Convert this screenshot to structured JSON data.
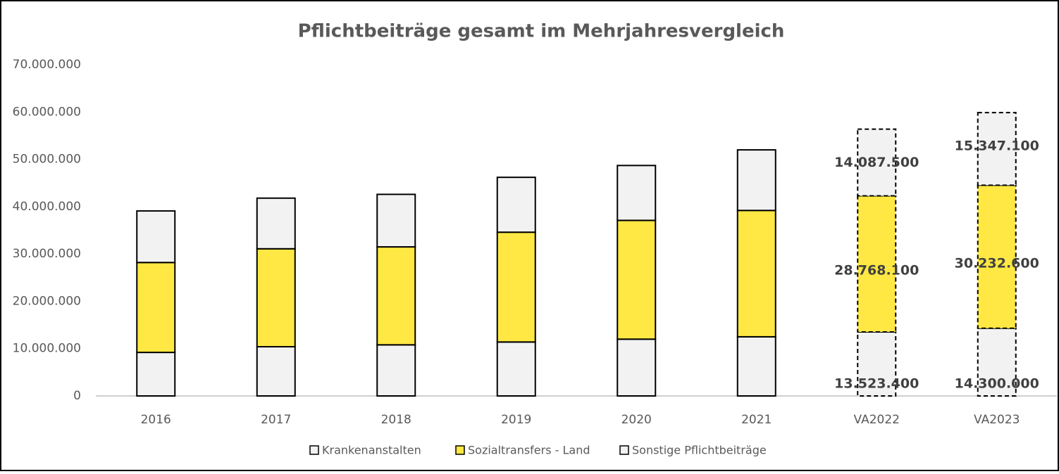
{
  "chart_data": {
    "type": "stacked_bar",
    "title": "Pflichtbeiträge gesamt  im Mehrjahresvergleich",
    "categories": [
      "2016",
      "2017",
      "2018",
      "2019",
      "2020",
      "2021",
      "VA2022",
      "VA2023"
    ],
    "series": [
      {
        "name": "Krankenanstalten",
        "color": "#f2f2f2",
        "values": [
          9200000,
          10400000,
          10800000,
          11400000,
          12000000,
          12500000,
          13523400,
          14300000
        ],
        "value_labels": [
          null,
          null,
          null,
          null,
          null,
          null,
          "13.523.400",
          "14.300.000"
        ]
      },
      {
        "name": "Sozialtransfers - Land",
        "color": "#ffe843",
        "values": [
          19000000,
          20700000,
          20700000,
          23200000,
          25100000,
          26700000,
          28768100,
          30232600
        ],
        "value_labels": [
          null,
          null,
          null,
          null,
          null,
          null,
          "28.768.100",
          "30.232.600"
        ]
      },
      {
        "name": "Sonstige Pflichtbeiträge",
        "color": "#f2f2f2",
        "values": [
          10900000,
          10700000,
          11100000,
          11600000,
          11600000,
          12800000,
          14087500,
          15347100
        ],
        "value_labels": [
          null,
          null,
          null,
          null,
          null,
          null,
          "14.087.500",
          "15.347.100"
        ]
      }
    ],
    "dashed": [
      false,
      false,
      false,
      false,
      false,
      false,
      true,
      true
    ],
    "ylim": [
      0,
      70000000
    ],
    "yticks": [
      0,
      {
        "value": 10000000,
        "label": "10.000.000"
      },
      {
        "value": 20000000,
        "label": "20.000.000"
      },
      {
        "value": 30000000,
        "label": "30.000.000"
      },
      {
        "value": 40000000,
        "label": "40.000.000"
      },
      {
        "value": 50000000,
        "label": "50.000.000"
      },
      {
        "value": 60000000,
        "label": "60.000.000"
      },
      {
        "value": 70000000,
        "label": "70.000.000"
      }
    ],
    "grid": false,
    "legend": "bottom"
  }
}
